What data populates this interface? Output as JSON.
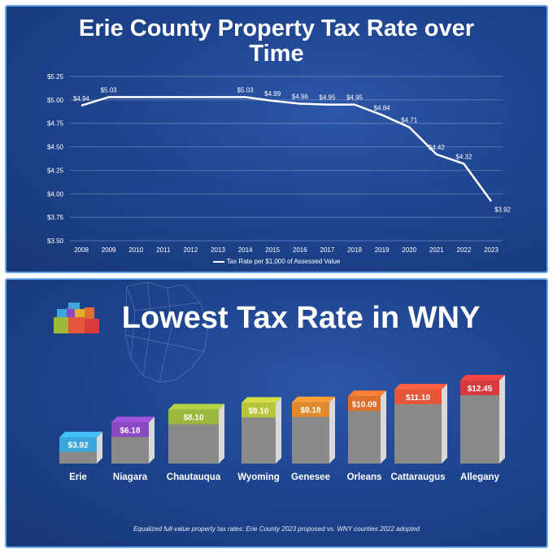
{
  "chart_data": [
    {
      "type": "line",
      "title": "Erie County Property Tax Rate over Time",
      "x": [
        "2008",
        "2009",
        "2010",
        "2011",
        "2012",
        "2013",
        "2014",
        "2015",
        "2016",
        "2017",
        "2018",
        "2019",
        "2020",
        "2021",
        "2022",
        "2023"
      ],
      "series": [
        {
          "name": "Tax Rate per $1,000 of Assessed Value",
          "values": [
            4.94,
            5.03,
            5.03,
            5.03,
            5.03,
            5.03,
            5.03,
            4.99,
            4.96,
            4.95,
            4.95,
            4.84,
            4.71,
            4.42,
            4.32,
            3.92
          ],
          "labels": [
            "$4.94",
            "$5.03",
            null,
            null,
            null,
            null,
            "$5.03",
            "$4.99",
            "$4.96",
            "$4.95",
            "$4.95",
            "$4.84",
            "$4.71",
            "$4.42",
            "$4.32",
            "$3.92"
          ],
          "color": "#ffffff"
        }
      ],
      "ylim": [
        3.5,
        5.25
      ],
      "yticks": [
        3.5,
        3.75,
        4.0,
        4.25,
        4.5,
        4.75,
        5.0,
        5.25
      ],
      "ytick_labels": [
        "$3.50",
        "$3.75",
        "$4.00",
        "$4.25",
        "$4.50",
        "$4.75",
        "$5.00",
        "$5.25"
      ],
      "grid": true,
      "legend": "bottom"
    },
    {
      "type": "bar",
      "title": "Lowest Tax Rate in WNY",
      "categories": [
        "Erie",
        "Niagara",
        "Chautauqua",
        "Wyoming",
        "Genesee",
        "Orleans",
        "Cattaraugus",
        "Allegany"
      ],
      "values": [
        3.92,
        6.18,
        8.1,
        9.1,
        9.18,
        10.09,
        11.1,
        12.45
      ],
      "labels": [
        "$3.92",
        "$6.18",
        "$8.10",
        "$9.10",
        "$9.18",
        "$10.09",
        "$11.10",
        "$12.45"
      ],
      "colors": [
        "#3aa8dc",
        "#8a48c2",
        "#9cb83a",
        "#b8c43a",
        "#e08a2c",
        "#e06f2c",
        "#e4563a",
        "#d63a3a"
      ],
      "footnote": "Equalized full-value property tax rates: Erie County 2023 proposed vs. WNY counties 2022 adopted"
    }
  ]
}
